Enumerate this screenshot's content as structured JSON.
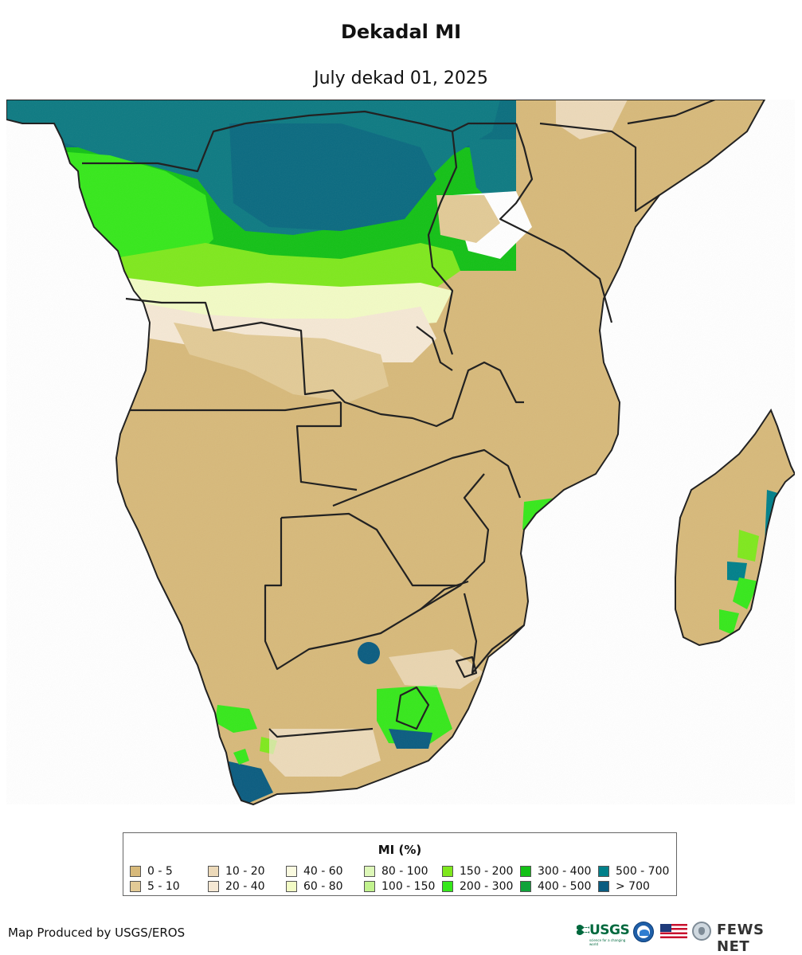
{
  "title": "Dekadal MI",
  "subtitle": "July dekad 01, 2025",
  "legend": {
    "title": "MI (%)",
    "items": [
      {
        "label": "0 - 5",
        "color": "#d7b97a"
      },
      {
        "label": "5 - 10",
        "color": "#e2ca96"
      },
      {
        "label": "10 - 20",
        "color": "#ecd9b9"
      },
      {
        "label": "20 - 40",
        "color": "#f5e8d4"
      },
      {
        "label": "40 - 60",
        "color": "#fafae0"
      },
      {
        "label": "60 - 80",
        "color": "#f2fbc5"
      },
      {
        "label": "80 - 100",
        "color": "#ddf7b8"
      },
      {
        "label": "100 - 150",
        "color": "#c1f28e"
      },
      {
        "label": "150 - 200",
        "color": "#7fe81d"
      },
      {
        "label": "200 - 300",
        "color": "#36e81b"
      },
      {
        "label": "300 - 400",
        "color": "#13c116"
      },
      {
        "label": "400 - 500",
        "color": "#0fa33a"
      },
      {
        "label": "500 - 700",
        "color": "#00808a"
      },
      {
        "label": "> 700",
        "color": "#0a5c80"
      }
    ]
  },
  "credit": "Map Produced by USGS/EROS",
  "logos": {
    "usgs": "USGS",
    "usgs_tagline": "science for a changing world",
    "fews": "FEWS NET"
  }
}
